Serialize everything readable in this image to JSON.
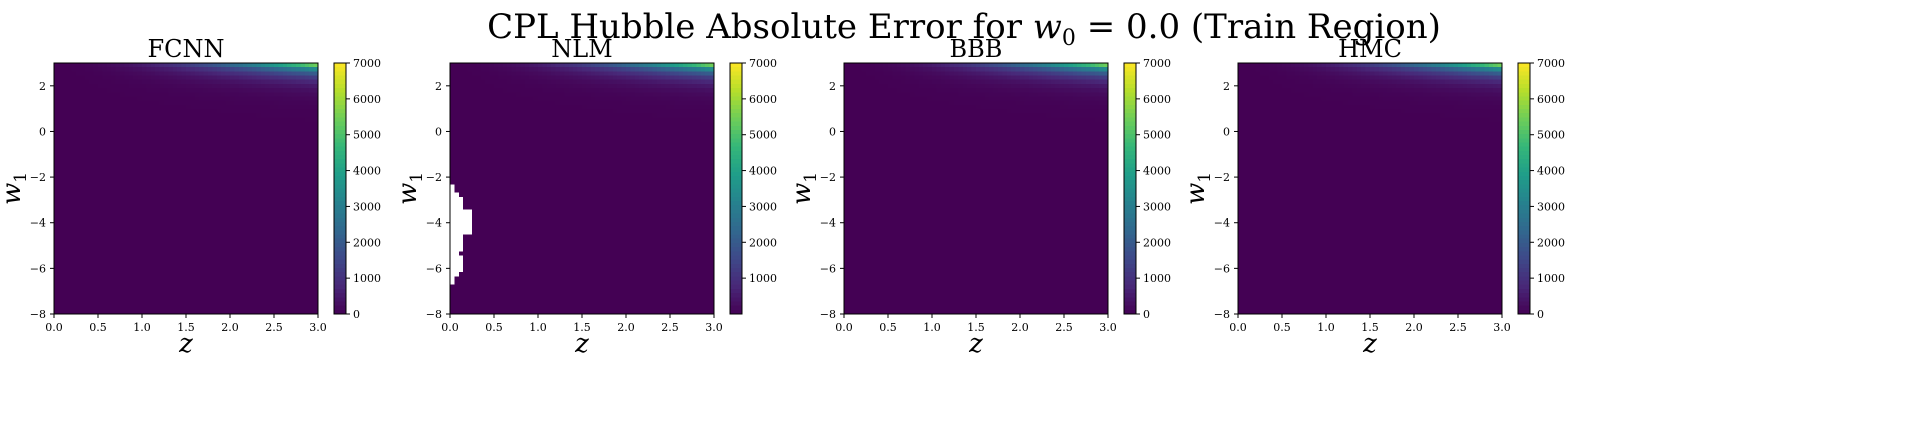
{
  "figure": {
    "suptitle_main": "CPL Hubble Absolute Error for ",
    "suptitle_var": "w",
    "suptitle_sub": "0",
    "suptitle_eq": " = 0.0 (Train Region)"
  },
  "chart_data": [
    {
      "type": "heatmap",
      "title": "FCNN",
      "xlabel": "z",
      "ylabel_var": "w",
      "ylabel_sub": "1",
      "xlim": [
        0.0,
        3.0
      ],
      "ylim": [
        -8,
        3
      ],
      "xticks": [
        "0.0",
        "0.5",
        "1.0",
        "1.5",
        "2.0",
        "2.5",
        "3.0"
      ],
      "yticks": [
        "2",
        "0",
        "−2",
        "−4",
        "−6",
        "−8"
      ],
      "colorbar": {
        "min": 0,
        "max": 7000,
        "ticks": [
          "0",
          "1000",
          "2000",
          "3000",
          "4000",
          "5000",
          "6000",
          "7000"
        ]
      },
      "peak_value": 7000,
      "missing_region": false
    },
    {
      "type": "heatmap",
      "title": "NLM",
      "xlabel": "z",
      "ylabel_var": "w",
      "ylabel_sub": "1",
      "xlim": [
        0.0,
        3.0
      ],
      "ylim": [
        -8,
        3
      ],
      "xticks": [
        "0.0",
        "0.5",
        "1.0",
        "1.5",
        "2.0",
        "2.5",
        "3.0"
      ],
      "yticks": [
        "2",
        "0",
        "−2",
        "−4",
        "−6",
        "−8"
      ],
      "colorbar": {
        "min": 0,
        "max": 7000,
        "ticks": [
          "1000",
          "2000",
          "3000",
          "4000",
          "5000",
          "6000",
          "7000"
        ]
      },
      "peak_value": 7000,
      "missing_region": true
    },
    {
      "type": "heatmap",
      "title": "BBB",
      "xlabel": "z",
      "ylabel_var": "w",
      "ylabel_sub": "1",
      "xlim": [
        0.0,
        3.0
      ],
      "ylim": [
        -8,
        3
      ],
      "xticks": [
        "0.0",
        "0.5",
        "1.0",
        "1.5",
        "2.0",
        "2.5",
        "3.0"
      ],
      "yticks": [
        "2",
        "0",
        "−2",
        "−4",
        "−6",
        "−8"
      ],
      "colorbar": {
        "min": 0,
        "max": 7000,
        "ticks": [
          "0",
          "1000",
          "2000",
          "3000",
          "4000",
          "5000",
          "6000",
          "7000"
        ]
      },
      "peak_value": 7000,
      "missing_region": false
    },
    {
      "type": "heatmap",
      "title": "HMC",
      "xlabel": "z",
      "ylabel_var": "w",
      "ylabel_sub": "1",
      "xlim": [
        0.0,
        3.0
      ],
      "ylim": [
        -8,
        3
      ],
      "xticks": [
        "0.0",
        "0.5",
        "1.0",
        "1.5",
        "2.0",
        "2.5",
        "3.0"
      ],
      "yticks": [
        "2",
        "0",
        "−2",
        "−4",
        "−6",
        "−8"
      ],
      "colorbar": {
        "min": 0,
        "max": 7000,
        "ticks": [
          "0",
          "1000",
          "2000",
          "3000",
          "4000",
          "5000",
          "6000",
          "7000"
        ]
      },
      "peak_value": 7000,
      "missing_region": false
    }
  ],
  "colormap": {
    "name": "viridis",
    "stops": [
      "#440154",
      "#482878",
      "#3e4989",
      "#31688e",
      "#26828e",
      "#1f9e89",
      "#35b779",
      "#6ece58",
      "#b5de2b",
      "#fde725"
    ]
  }
}
